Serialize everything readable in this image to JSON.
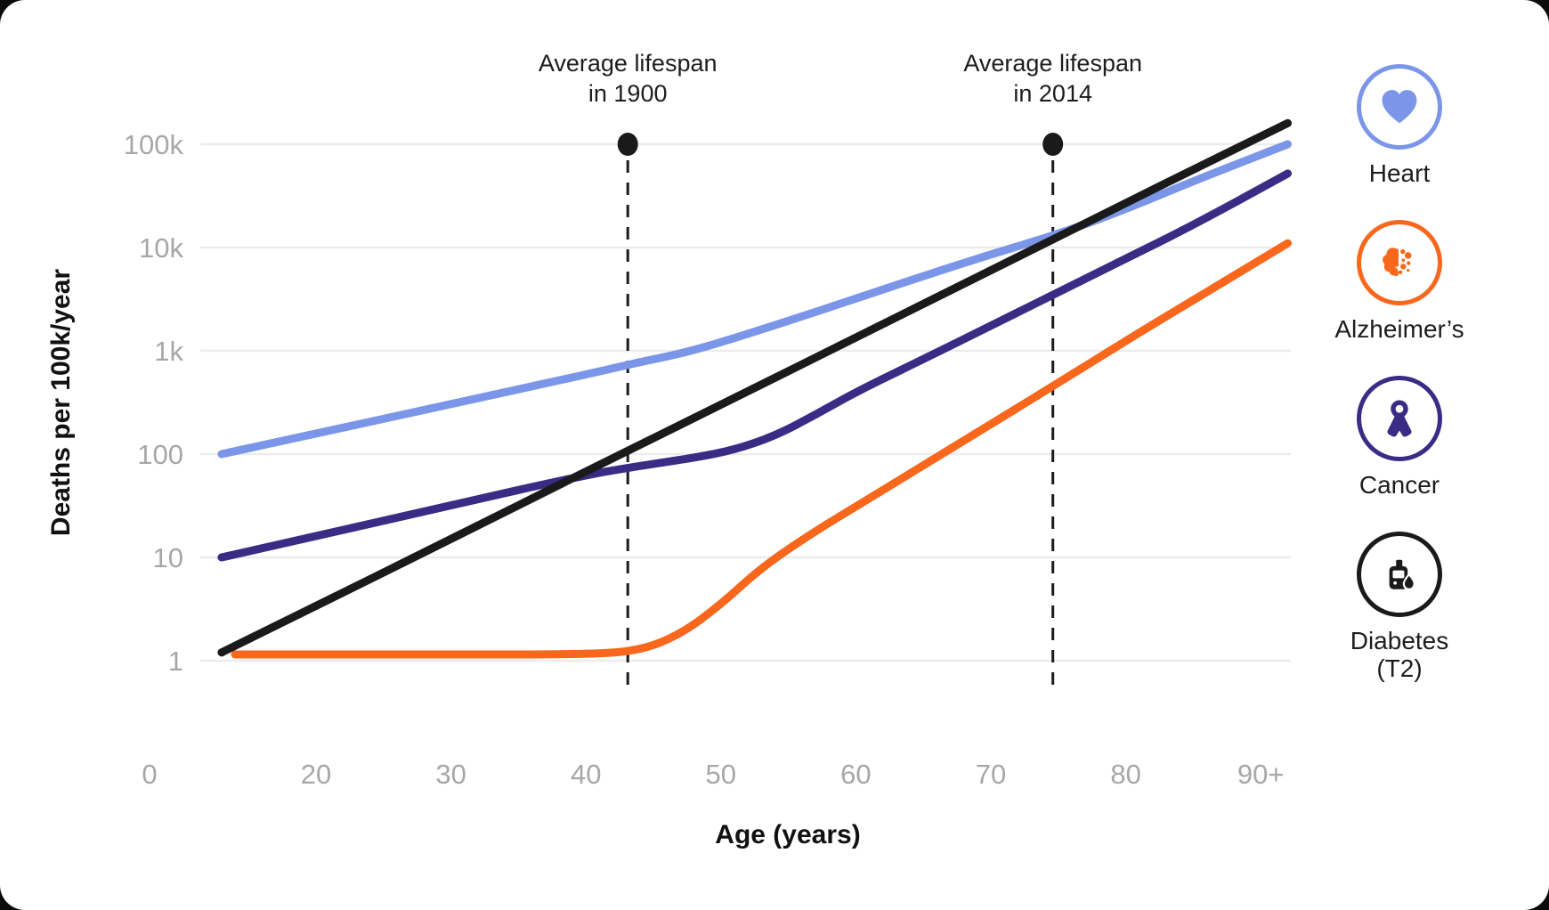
{
  "chart_data": {
    "type": "line",
    "title": "",
    "xlabel": "Age (years)",
    "ylabel": "Deaths per 100k/year",
    "x_axis": {
      "origin_label": "0",
      "ticks": [
        {
          "age": 20,
          "label": "20"
        },
        {
          "age": 30,
          "label": "30"
        },
        {
          "age": 40,
          "label": "40"
        },
        {
          "age": 50,
          "label": "50"
        },
        {
          "age": 60,
          "label": "60"
        },
        {
          "age": 70,
          "label": "70"
        },
        {
          "age": 80,
          "label": "80"
        },
        {
          "age": 90,
          "label": "90+"
        }
      ],
      "range_years": [
        13,
        92
      ]
    },
    "y_axis": {
      "scale": "log",
      "ticks": [
        {
          "label": "100k",
          "value": 100000
        },
        {
          "label": "10k",
          "value": 10000
        },
        {
          "label": "1k",
          "value": 1000
        },
        {
          "label": "100",
          "value": 100
        },
        {
          "label": "10",
          "value": 10
        },
        {
          "label": "1",
          "value": 1
        }
      ],
      "range": [
        1,
        160000
      ]
    },
    "annotations": [
      {
        "lines": [
          "Average lifespan",
          "in 1900"
        ],
        "age": 43.1
      },
      {
        "lines": [
          "Average lifespan",
          "in 2014"
        ],
        "age": 74.6
      }
    ],
    "series": [
      {
        "name": "Heart",
        "color": "#7B96E8",
        "points": [
          [
            13,
            100
          ],
          [
            20,
            158
          ],
          [
            30,
            306
          ],
          [
            40,
            590
          ],
          [
            44,
            780
          ],
          [
            48,
            1000
          ],
          [
            55,
            1950
          ],
          [
            60,
            3200
          ],
          [
            65,
            5300
          ],
          [
            70,
            8600
          ],
          [
            75,
            13500
          ],
          [
            80,
            23500
          ],
          [
            85,
            44000
          ],
          [
            92,
            100000
          ]
        ]
      },
      {
        "name": "Alzheimer’s",
        "color": "#F8671C",
        "points": [
          [
            14,
            1.15
          ],
          [
            20,
            1.15
          ],
          [
            30,
            1.15
          ],
          [
            40,
            1.15
          ],
          [
            44,
            1.25
          ],
          [
            47,
            1.8
          ],
          [
            50,
            3.5
          ],
          [
            53,
            8
          ],
          [
            57,
            18
          ],
          [
            60,
            31
          ],
          [
            65,
            78
          ],
          [
            70,
            195
          ],
          [
            75,
            490
          ],
          [
            80,
            1250
          ],
          [
            85,
            3100
          ],
          [
            92,
            11000
          ]
        ]
      },
      {
        "name": "Cancer",
        "color": "#3A2B85",
        "points": [
          [
            13,
            10
          ],
          [
            20,
            16
          ],
          [
            30,
            32
          ],
          [
            40,
            63
          ],
          [
            44,
            77
          ],
          [
            48,
            92
          ],
          [
            51,
            110
          ],
          [
            54,
            150
          ],
          [
            57,
            240
          ],
          [
            60,
            400
          ],
          [
            65,
            830
          ],
          [
            70,
            1750
          ],
          [
            75,
            3700
          ],
          [
            80,
            7800
          ],
          [
            85,
            16500
          ],
          [
            92,
            52000
          ]
        ]
      },
      {
        "name": "Diabetes (T2)",
        "color": "#1A1A1A",
        "points": [
          [
            13,
            1.2
          ],
          [
            20,
            3.4
          ],
          [
            30,
            15
          ],
          [
            40,
            68
          ],
          [
            50,
            300
          ],
          [
            60,
            1350
          ],
          [
            70,
            6000
          ],
          [
            80,
            27000
          ],
          [
            85,
            57000
          ],
          [
            92,
            160000
          ]
        ]
      }
    ],
    "colors": {
      "grid": "#ECECEC",
      "axis_text": "#A7A7A7",
      "annotation": "#1A1A1A"
    },
    "grid": "horizontal-only",
    "legend_position": "right"
  },
  "legend": {
    "items": [
      {
        "id": "heart",
        "line1": "Heart",
        "line2": "",
        "color": "#7B96E8"
      },
      {
        "id": "alzheimers",
        "line1": "Alzheimer’s",
        "line2": "",
        "color": "#F8671C"
      },
      {
        "id": "cancer",
        "line1": "Cancer",
        "line2": "",
        "color": "#3A2B85"
      },
      {
        "id": "diabetes",
        "line1": "Diabetes",
        "line2": "(T2)",
        "color": "#1A1A1A"
      }
    ]
  }
}
